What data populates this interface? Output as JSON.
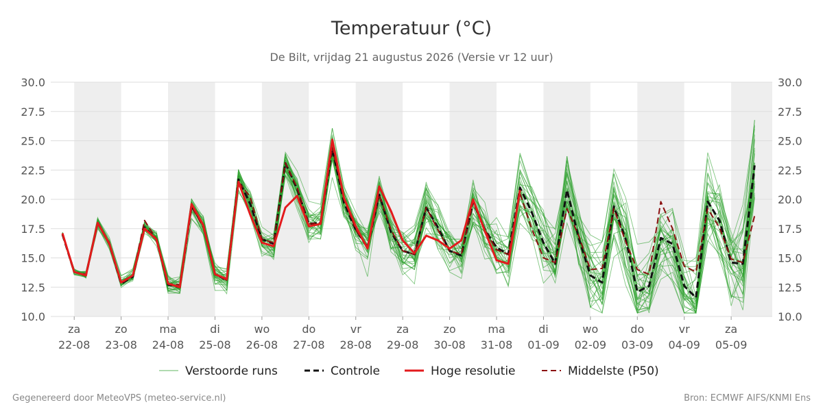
{
  "chart_data": {
    "type": "line",
    "title": "Temperatuur (°C)",
    "subtitle": "De Bilt, vrijdag 21 augustus 2026 (Versie vr 12 uur)",
    "ylim": [
      10.0,
      30.0
    ],
    "yticks": [
      "10.0",
      "12.5",
      "15.0",
      "17.5",
      "20.0",
      "22.5",
      "25.0",
      "27.5",
      "30.0"
    ],
    "x_unit": "6-hourly steps from Fri 21-08 18:00 to Sat 05-09 12:00",
    "x_range_steps": [
      -1,
      60.5
    ],
    "day_axis": [
      {
        "day": "za",
        "date": "22-08",
        "step": 1
      },
      {
        "day": "zo",
        "date": "23-08",
        "step": 5
      },
      {
        "day": "ma",
        "date": "24-08",
        "step": 9
      },
      {
        "day": "di",
        "date": "25-08",
        "step": 13
      },
      {
        "day": "wo",
        "date": "26-08",
        "step": 17
      },
      {
        "day": "do",
        "date": "27-08",
        "step": 21
      },
      {
        "day": "vr",
        "date": "28-08",
        "step": 25
      },
      {
        "day": "za",
        "date": "29-08",
        "step": 29
      },
      {
        "day": "zo",
        "date": "30-08",
        "step": 33
      },
      {
        "day": "ma",
        "date": "31-08",
        "step": 37
      },
      {
        "day": "di",
        "date": "01-09",
        "step": 41
      },
      {
        "day": "wo",
        "date": "02-09",
        "step": 45
      },
      {
        "day": "do",
        "date": "03-09",
        "step": 49
      },
      {
        "day": "vr",
        "date": "04-09",
        "step": 53
      },
      {
        "day": "za",
        "date": "05-09",
        "step": 57
      }
    ],
    "shaded_days_start_steps": [
      1,
      9,
      17,
      25,
      33,
      41,
      49,
      57
    ],
    "series": [
      {
        "name": "Hoge resolutie",
        "color": "#e31a1c",
        "style": "solid",
        "values": [
          17.1,
          13.8,
          13.5,
          18.0,
          16.2,
          12.9,
          13.5,
          17.5,
          16.6,
          12.8,
          12.5,
          19.6,
          17.8,
          13.6,
          13.2,
          21.5,
          18.7,
          16.3,
          16.0,
          19.3,
          20.3,
          17.7,
          17.9,
          25.1,
          20.1,
          17.7,
          15.8,
          21.1,
          19.0,
          16.5,
          15.4,
          16.9,
          16.5,
          15.8,
          16.5,
          20.0,
          17.3,
          14.8,
          14.5,
          20.8
        ]
      },
      {
        "name": "Controle",
        "color": "#111111",
        "style": "dashed",
        "values": [
          17.0,
          13.8,
          13.5,
          18.0,
          16.2,
          12.8,
          13.4,
          17.6,
          16.6,
          12.7,
          12.5,
          19.4,
          17.8,
          13.6,
          13.1,
          21.7,
          19.6,
          16.6,
          16.2,
          23.1,
          20.9,
          17.9,
          18.0,
          24.3,
          19.7,
          17.4,
          15.9,
          20.4,
          17.2,
          15.6,
          15.3,
          19.3,
          17.6,
          15.6,
          15.2,
          19.8,
          17.4,
          15.9,
          15.3,
          21.0,
          18.9,
          16.3,
          14.5,
          20.8,
          16.7,
          13.5,
          12.9,
          19.4,
          16.6,
          12.1,
          12.6,
          16.7,
          16.2,
          12.6,
          11.6,
          19.8,
          18.2,
          14.6,
          14.5,
          22.9
        ]
      },
      {
        "name": "Middelste (P50)",
        "color": "#8b1010",
        "style": "dashed",
        "values": [
          17.0,
          13.8,
          13.6,
          18.0,
          16.3,
          12.8,
          13.5,
          18.2,
          16.6,
          12.8,
          12.7,
          19.4,
          17.6,
          13.6,
          13.1,
          21.5,
          20.2,
          16.6,
          16.3,
          23.1,
          21.0,
          17.9,
          18.0,
          24.4,
          20.1,
          17.4,
          15.9,
          20.4,
          17.4,
          15.6,
          15.3,
          19.3,
          17.4,
          15.6,
          15.3,
          19.8,
          17.4,
          15.7,
          15.3,
          20.5,
          17.5,
          15.0,
          14.6,
          19.2,
          16.9,
          14.0,
          14.1,
          19.2,
          16.4,
          14.0,
          13.6,
          19.8,
          17.5,
          14.3,
          13.8,
          19.2,
          17.6,
          14.9,
          14.6,
          18.6
        ]
      }
    ]
  },
  "legend": {
    "ensemble": "Verstoorde runs",
    "control": "Controle",
    "highres": "Hoge resolutie",
    "p50": "Middelste (P50)"
  },
  "footer": {
    "left": "Gegenereerd door MeteoVPS (meteo-service.nl)",
    "right": "Bron: ECMWF AIFS/KNMI Ens"
  },
  "colors": {
    "ensemble": "#2ca02c",
    "band": "#eeeeee",
    "grid": "#dddddd"
  }
}
